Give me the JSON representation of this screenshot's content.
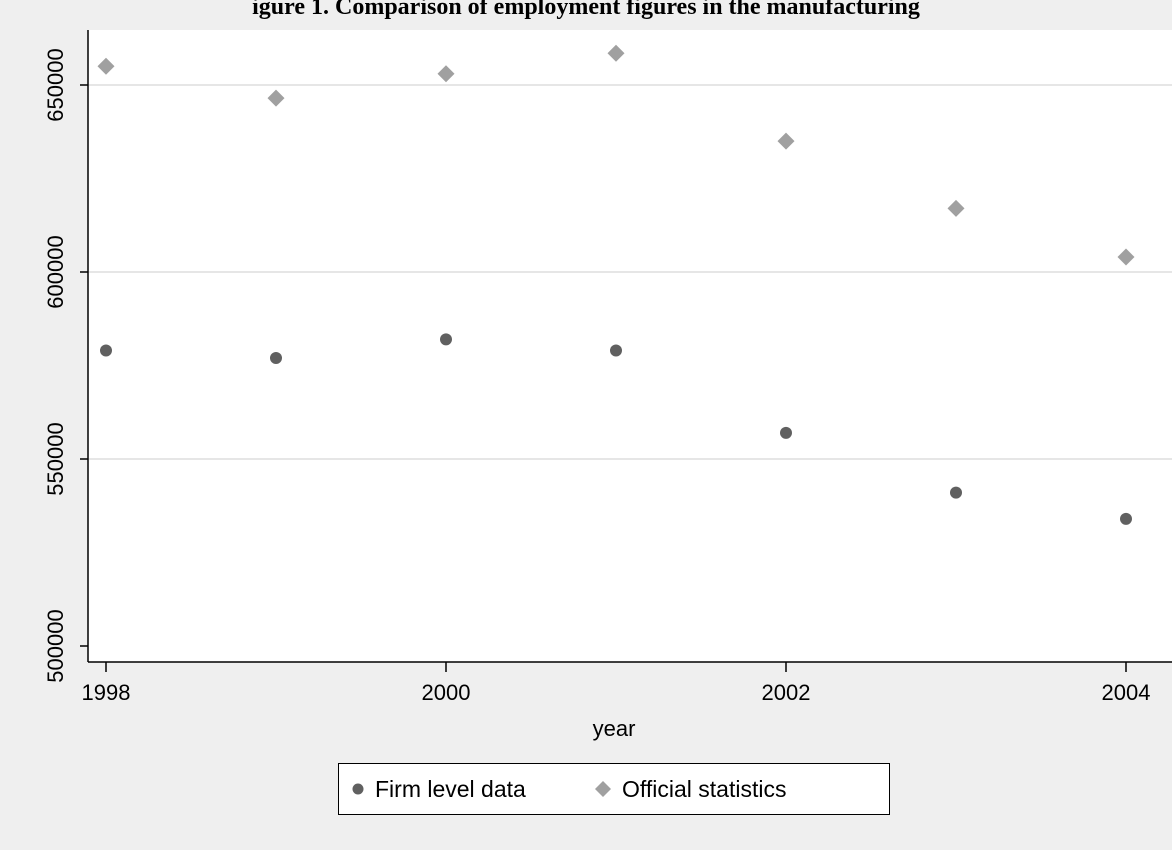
{
  "chart_data": {
    "type": "scatter",
    "title": "igure 1. Comparison of employment figures in the manufacturing",
    "xlabel": "year",
    "ylabel": "",
    "x_ticks": [
      "1998",
      "2000",
      "2002",
      "2004"
    ],
    "y_ticks": [
      "500000",
      "550000",
      "600000",
      "650000"
    ],
    "xlim": [
      1998,
      2004
    ],
    "ylim": [
      500000,
      660000
    ],
    "grid": true,
    "legend_position": "bottom",
    "x": [
      1998,
      1999,
      2000,
      2001,
      2002,
      2003,
      2004
    ],
    "series": [
      {
        "name": "Firm level data",
        "marker": "circle",
        "color": "#606060",
        "values": [
          579000,
          577000,
          582000,
          579000,
          557000,
          541000,
          534000
        ]
      },
      {
        "name": "Official statistics",
        "marker": "diamond",
        "color": "#a0a0a0",
        "values": [
          655000,
          646500,
          653000,
          658500,
          635000,
          617000,
          604000
        ]
      }
    ]
  },
  "colors": {
    "frame_background": "#efefef",
    "plot_background": "#ffffff",
    "gridline": "#e6e6e6"
  }
}
